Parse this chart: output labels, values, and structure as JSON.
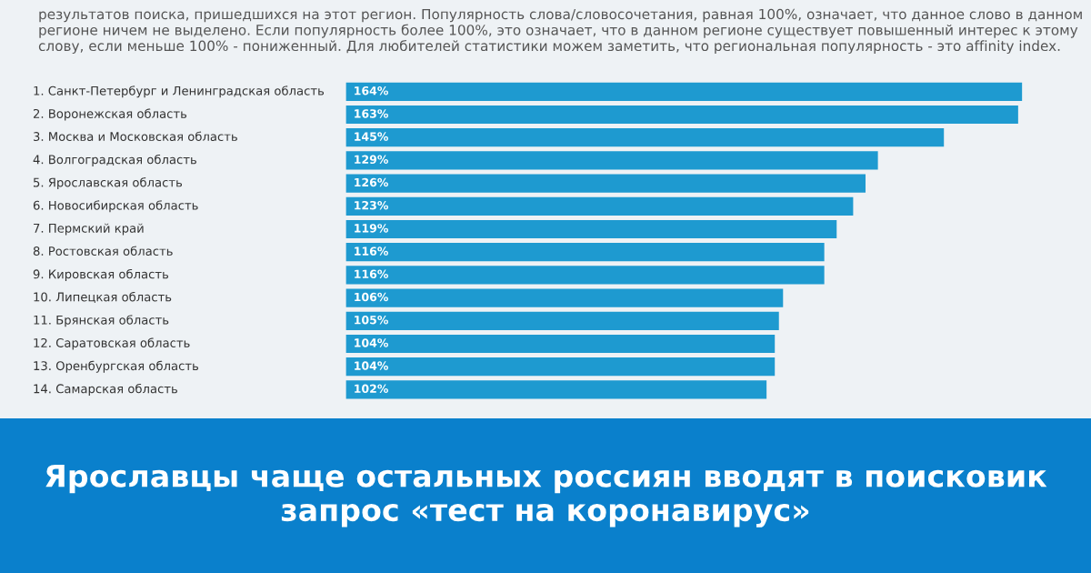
{
  "chart_data": {
    "type": "bar",
    "orientation": "horizontal",
    "title": "Ярославцы чаще остальных россиян вводят в поисковик запрос «тест на коронавирус»",
    "subtitle": "результатов поиска, пришедшихся на этот регион. Популярность слова/словосочетания, равная 100%, означает, что данное слово в данном регионе ничем не выделено. Если популярность более 100%, это означает, что в данном регионе существует повышенный интерес к этому слову, если меньше 100% - пониженный. Для любителей статистики можем заметить, что региональная популярность - это affinity index.",
    "categories": [
      "1. Санкт-Петербург и Ленинградская область",
      "2. Воронежская область",
      "3. Москва и Московская область",
      "4. Волгоградская область",
      "5. Ярославская область",
      "6. Новосибирская область",
      "7. Пермский край",
      "8. Ростовская область",
      "9. Кировская область",
      "10. Липецкая область",
      "11. Брянская область",
      "12. Саратовская область",
      "13. Оренбургская область",
      "14. Самарская область"
    ],
    "values": [
      164,
      163,
      145,
      129,
      126,
      123,
      119,
      116,
      116,
      106,
      105,
      104,
      104,
      102
    ],
    "value_labels": [
      "164%",
      "163%",
      "145%",
      "129%",
      "126%",
      "123%",
      "119%",
      "116%",
      "116%",
      "106%",
      "105%",
      "104%",
      "104%",
      "102%"
    ],
    "color": "#1e9ad0"
  }
}
